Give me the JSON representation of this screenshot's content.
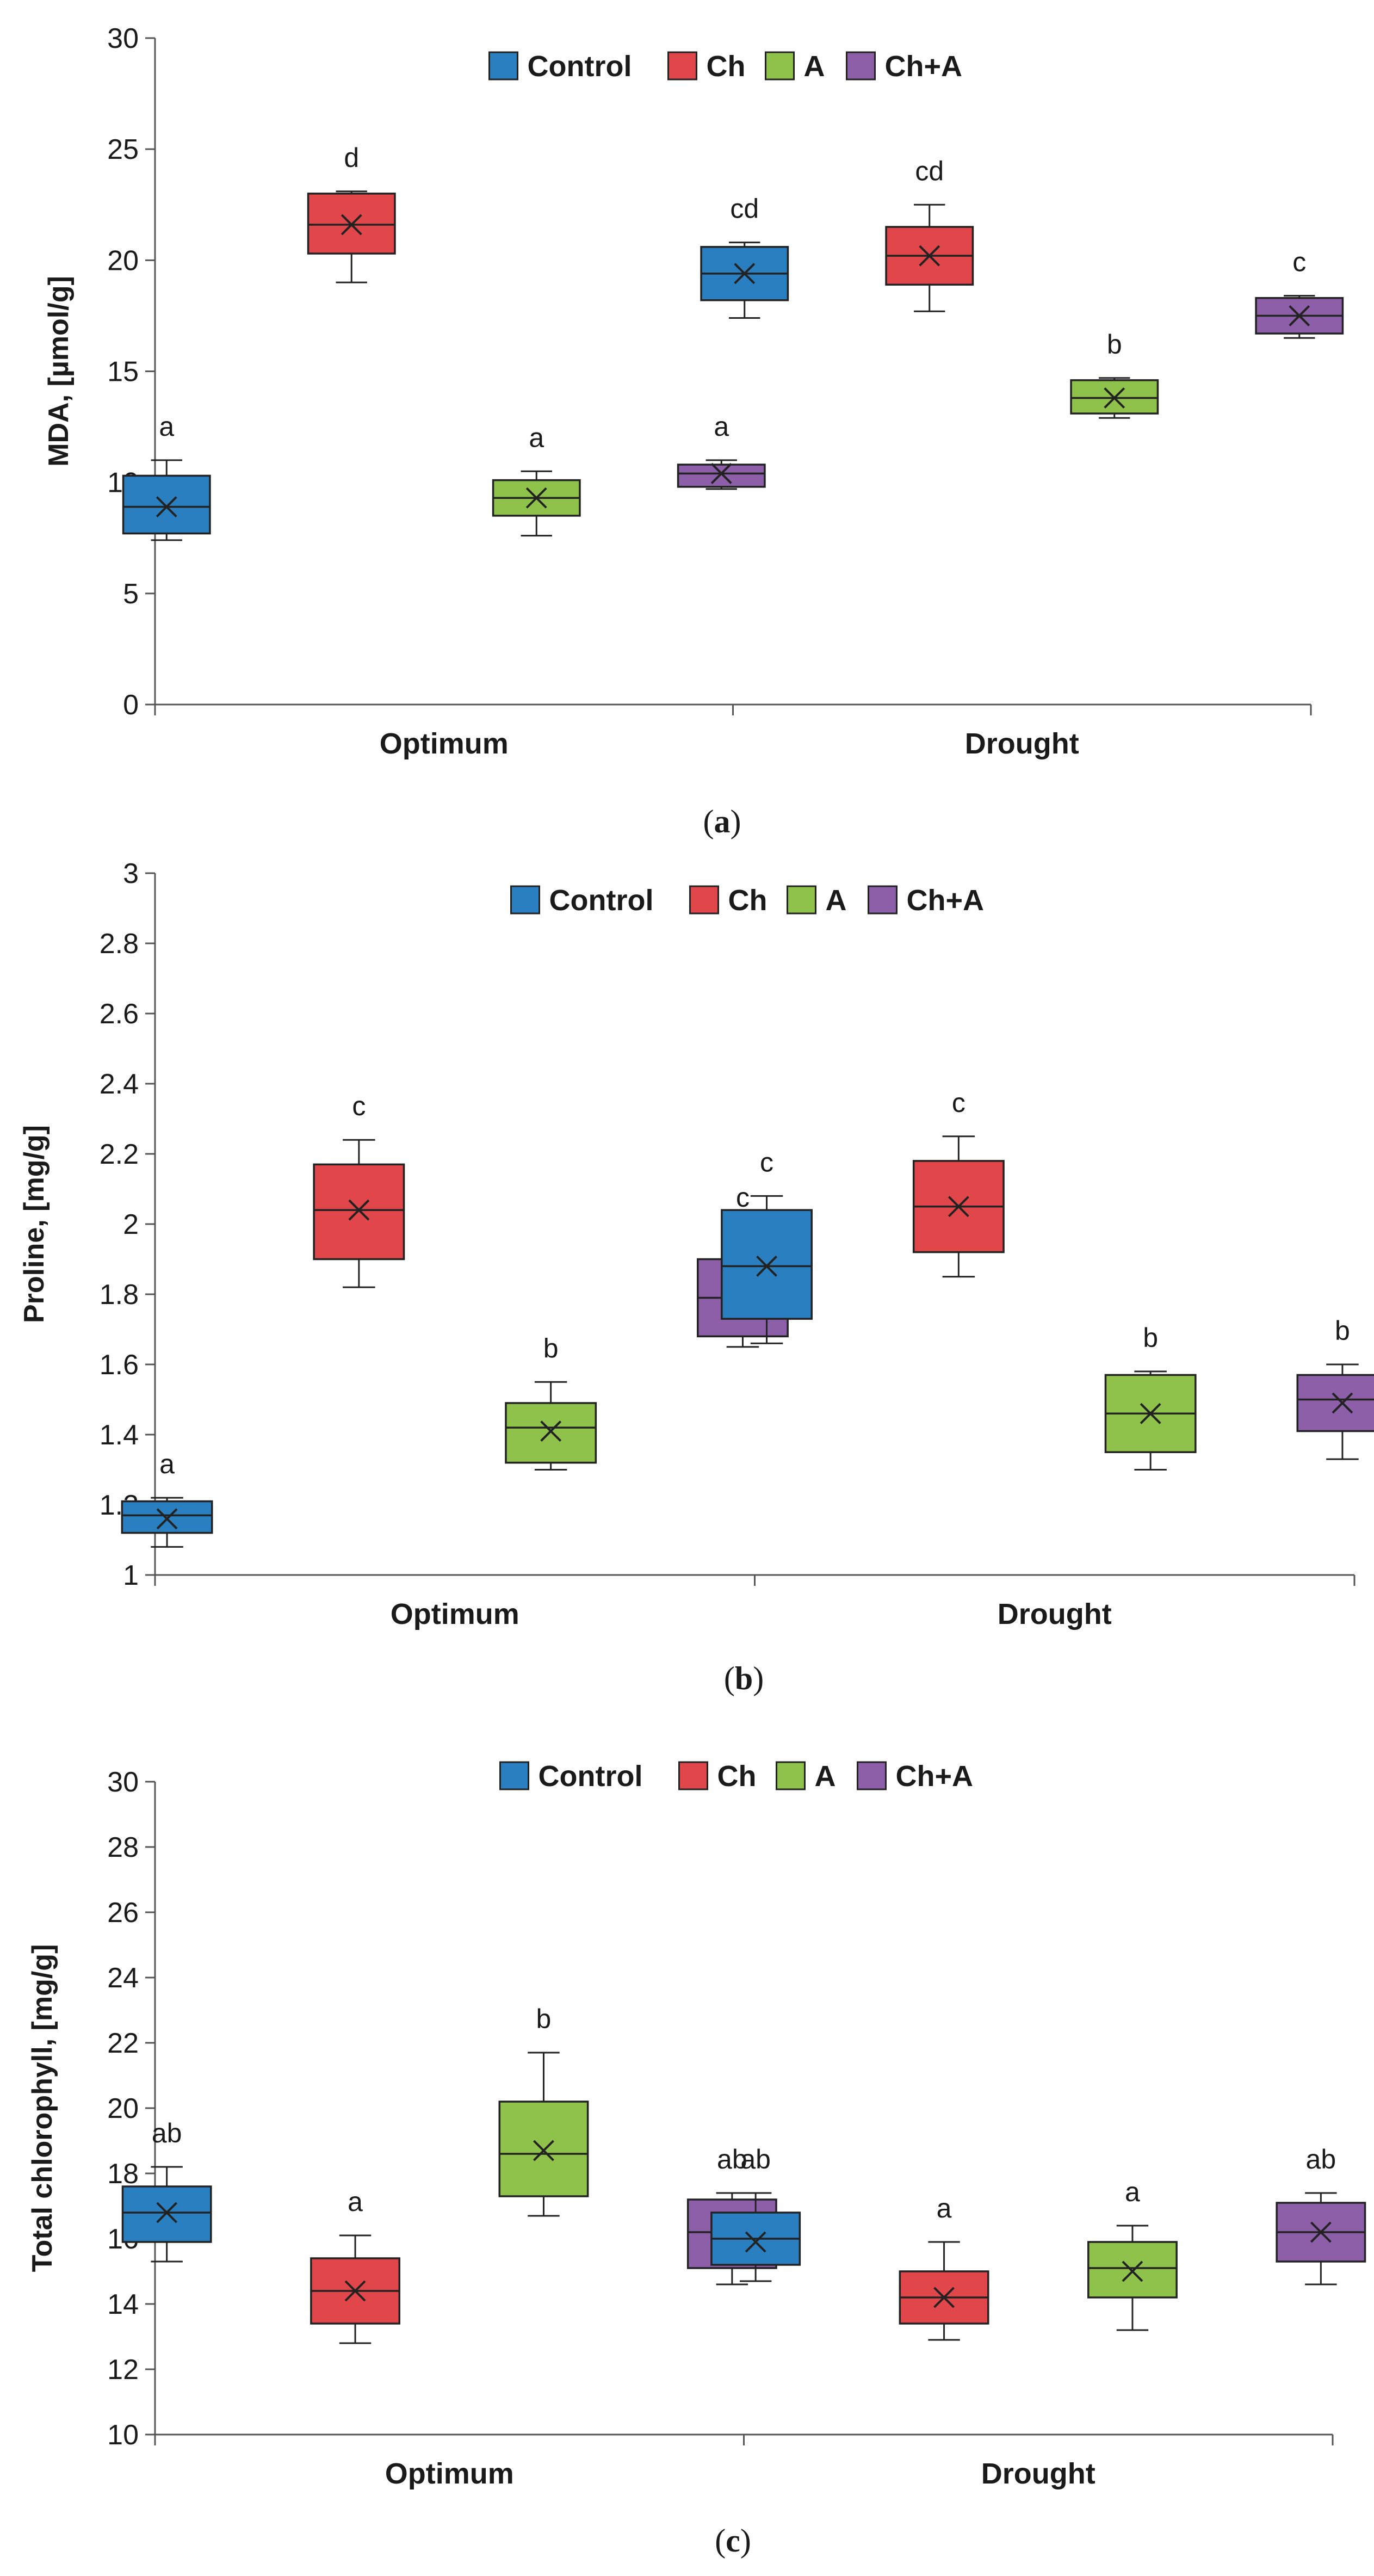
{
  "figure": {
    "legend": [
      {
        "name": "Control",
        "color": "#2a7fc0"
      },
      {
        "name": "Ch",
        "color": "#e0464a"
      },
      {
        "name": "A",
        "color": "#8ec24a"
      },
      {
        "name": "Ch+A",
        "color": "#8c5fa8"
      }
    ]
  },
  "chart_data": [
    {
      "type": "box",
      "panel": "a",
      "caption_open": "(",
      "caption_letter": "a",
      "caption_close": ")",
      "ylabel": "MDA, [µmol/g]",
      "xlabel": "",
      "ylim": [
        0,
        30
      ],
      "yticks": [
        0,
        5,
        10,
        15,
        20,
        25,
        30
      ],
      "categories": [
        "Optimum",
        "Drought"
      ],
      "legend_position": "top-center",
      "groups": [
        [
          {
            "series": "Control",
            "min": 7.4,
            "q1": 7.7,
            "median": 8.9,
            "q3": 10.3,
            "max": 11.0,
            "mean": 8.9,
            "letter": "a"
          },
          {
            "series": "Ch",
            "min": 19.0,
            "q1": 20.3,
            "median": 21.6,
            "q3": 23.0,
            "max": 23.1,
            "mean": 21.6,
            "letter": "d"
          },
          {
            "series": "A",
            "min": 7.6,
            "q1": 8.5,
            "median": 9.3,
            "q3": 10.1,
            "max": 10.5,
            "mean": 9.3,
            "letter": "a"
          },
          {
            "series": "Ch+A",
            "min": 9.7,
            "q1": 9.8,
            "median": 10.4,
            "q3": 10.8,
            "max": 11.0,
            "mean": 10.4,
            "letter": "a"
          }
        ],
        [
          {
            "series": "Control",
            "min": 17.4,
            "q1": 18.2,
            "median": 19.4,
            "q3": 20.6,
            "max": 20.8,
            "mean": 19.4,
            "letter": "cd"
          },
          {
            "series": "Ch",
            "min": 17.7,
            "q1": 18.9,
            "median": 20.2,
            "q3": 21.5,
            "max": 22.5,
            "mean": 20.2,
            "letter": "cd"
          },
          {
            "series": "A",
            "min": 12.9,
            "q1": 13.1,
            "median": 13.8,
            "q3": 14.6,
            "max": 14.7,
            "mean": 13.8,
            "letter": "b"
          },
          {
            "series": "Ch+A",
            "min": 16.5,
            "q1": 16.7,
            "median": 17.5,
            "q3": 18.3,
            "max": 18.4,
            "mean": 17.5,
            "letter": "c"
          }
        ]
      ]
    },
    {
      "type": "box",
      "panel": "b",
      "caption_open": "(",
      "caption_letter": "b",
      "caption_close": ")",
      "ylabel": "Proline, [mg/g]",
      "xlabel": "",
      "ylim": [
        1,
        3
      ],
      "yticks": [
        1,
        1.2,
        1.4,
        1.6,
        1.8,
        2,
        2.2,
        2.4,
        2.6,
        2.8,
        3
      ],
      "categories": [
        "Optimum",
        "Drought"
      ],
      "legend_position": "top-center",
      "groups": [
        [
          {
            "series": "Control",
            "min": 1.08,
            "q1": 1.12,
            "median": 1.17,
            "q3": 1.21,
            "max": 1.22,
            "mean": 1.16,
            "letter": "a"
          },
          {
            "series": "Ch",
            "min": 1.82,
            "q1": 1.9,
            "median": 2.04,
            "q3": 2.17,
            "max": 2.24,
            "mean": 2.04,
            "letter": "c"
          },
          {
            "series": "A",
            "min": 1.3,
            "q1": 1.32,
            "median": 1.42,
            "q3": 1.49,
            "max": 1.55,
            "mean": 1.41,
            "letter": "b"
          },
          {
            "series": "Ch+A",
            "min": 1.65,
            "q1": 1.68,
            "median": 1.79,
            "q3": 1.9,
            "max": 1.98,
            "mean": 1.79,
            "letter": "c"
          }
        ],
        [
          {
            "series": "Control",
            "min": 1.66,
            "q1": 1.73,
            "median": 1.88,
            "q3": 2.04,
            "max": 2.08,
            "mean": 1.88,
            "letter": "c"
          },
          {
            "series": "Ch",
            "min": 1.85,
            "q1": 1.92,
            "median": 2.05,
            "q3": 2.18,
            "max": 2.25,
            "mean": 2.05,
            "letter": "c"
          },
          {
            "series": "A",
            "min": 1.3,
            "q1": 1.35,
            "median": 1.46,
            "q3": 1.57,
            "max": 1.58,
            "mean": 1.46,
            "letter": "b"
          },
          {
            "series": "Ch+A",
            "min": 1.33,
            "q1": 1.41,
            "median": 1.5,
            "q3": 1.57,
            "max": 1.6,
            "mean": 1.49,
            "letter": "b"
          }
        ]
      ]
    },
    {
      "type": "box",
      "panel": "c",
      "caption_open": "(",
      "caption_letter": "c",
      "caption_close": ")",
      "ylabel": "Total chlorophyll, [mg/g]",
      "xlabel": "",
      "ylim": [
        10,
        30
      ],
      "yticks": [
        10,
        12,
        14,
        16,
        18,
        20,
        22,
        24,
        26,
        28,
        30
      ],
      "categories": [
        "Optimum",
        "Drought"
      ],
      "legend_position": "top-center",
      "groups": [
        [
          {
            "series": "Control",
            "min": 15.3,
            "q1": 15.9,
            "median": 16.8,
            "q3": 17.6,
            "max": 18.2,
            "mean": 16.8,
            "letter": "ab"
          },
          {
            "series": "Ch",
            "min": 12.8,
            "q1": 13.4,
            "median": 14.4,
            "q3": 15.4,
            "max": 16.1,
            "mean": 14.4,
            "letter": "a"
          },
          {
            "series": "A",
            "min": 16.7,
            "q1": 17.3,
            "median": 18.6,
            "q3": 20.2,
            "max": 21.7,
            "mean": 18.7,
            "letter": "b"
          },
          {
            "series": "Ch+A",
            "min": 14.6,
            "q1": 15.1,
            "median": 16.2,
            "q3": 17.2,
            "max": 17.4,
            "mean": 16.2,
            "letter": "ab"
          }
        ],
        [
          {
            "series": "Control",
            "min": 14.7,
            "q1": 15.2,
            "median": 16.0,
            "q3": 16.8,
            "max": 17.4,
            "mean": 15.9,
            "letter": "ab"
          },
          {
            "series": "Ch",
            "min": 12.9,
            "q1": 13.4,
            "median": 14.2,
            "q3": 15.0,
            "max": 15.9,
            "mean": 14.2,
            "letter": "a"
          },
          {
            "series": "A",
            "min": 13.2,
            "q1": 14.2,
            "median": 15.1,
            "q3": 15.9,
            "max": 16.4,
            "mean": 15.0,
            "letter": "a"
          },
          {
            "series": "Ch+A",
            "min": 14.6,
            "q1": 15.3,
            "median": 16.2,
            "q3": 17.1,
            "max": 17.4,
            "mean": 16.2,
            "letter": "ab"
          }
        ]
      ]
    }
  ]
}
